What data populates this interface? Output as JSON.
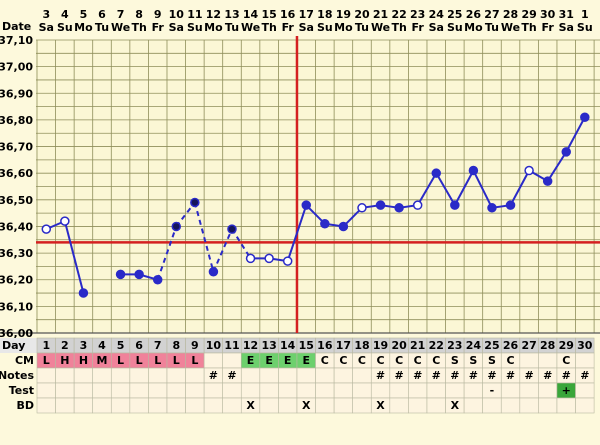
{
  "header": {
    "date_label": "Date",
    "dates": [
      "3",
      "4",
      "5",
      "6",
      "7",
      "8",
      "9",
      "10",
      "11",
      "12",
      "13",
      "14",
      "15",
      "16",
      "17",
      "18",
      "19",
      "20",
      "21",
      "22",
      "23",
      "24",
      "25",
      "26",
      "27",
      "28",
      "29",
      "30",
      "31",
      "1"
    ],
    "weekdays": [
      "Sa",
      "Su",
      "Mo",
      "Tu",
      "We",
      "Th",
      "Fr",
      "Sa",
      "Su",
      "Mo",
      "Tu",
      "We",
      "Th",
      "Fr",
      "Sa",
      "Su",
      "Mo",
      "Tu",
      "We",
      "Th",
      "Fr",
      "Sa",
      "Su",
      "Mo",
      "Tu",
      "We",
      "Th",
      "Fr",
      "Sa",
      "Su"
    ]
  },
  "chart_data": {
    "type": "line",
    "ylim": [
      36.0,
      37.1
    ],
    "yticks": [
      "37,10",
      "37,00",
      "36,90",
      "36,80",
      "36,70",
      "36,60",
      "36,50",
      "36,40",
      "36,30",
      "36,20",
      "36,10",
      "36,00"
    ],
    "x": [
      1,
      2,
      3,
      4,
      5,
      6,
      7,
      8,
      9,
      10,
      11,
      12,
      13,
      14,
      15,
      16,
      17,
      18,
      19,
      20,
      21,
      22,
      23,
      24,
      25,
      26,
      27,
      28,
      29,
      30
    ],
    "temps": [
      36.39,
      36.42,
      36.15,
      null,
      36.22,
      36.22,
      36.2,
      36.4,
      36.49,
      36.23,
      36.39,
      36.28,
      36.28,
      36.27,
      36.48,
      36.41,
      36.4,
      36.47,
      36.48,
      36.47,
      36.48,
      36.6,
      36.48,
      36.61,
      36.47,
      36.48,
      36.61,
      36.57,
      36.68,
      36.81
    ],
    "open_markers": [
      1,
      2,
      12,
      13,
      14,
      18,
      21,
      27
    ],
    "solid_line_segments": [
      [
        1,
        3
      ],
      [
        5,
        7
      ],
      [
        14,
        30
      ]
    ],
    "dashed_line_segments": [
      [
        7,
        10
      ],
      [
        10,
        14
      ]
    ],
    "unconnected_points": [
      8,
      9,
      11
    ],
    "coverline": 36.34,
    "ovulation_day": 14,
    "colors": {
      "line": "#2a2ac8",
      "coverline": "#d42020",
      "grid": "#8e8e5a",
      "plot_bg": "#fbf7d5"
    }
  },
  "rows": {
    "day": {
      "label": "Day",
      "values": [
        "1",
        "2",
        "3",
        "4",
        "5",
        "6",
        "7",
        "8",
        "9",
        "10",
        "11",
        "12",
        "13",
        "14",
        "15",
        "16",
        "17",
        "18",
        "19",
        "20",
        "21",
        "22",
        "23",
        "24",
        "25",
        "26",
        "27",
        "28",
        "29",
        "30"
      ]
    },
    "cm": {
      "label": "CM",
      "values": [
        "L",
        "H",
        "H",
        "M",
        "L",
        "L",
        "L",
        "L",
        "L",
        "",
        "",
        "E",
        "E",
        "E",
        "E",
        "C",
        "C",
        "C",
        "C",
        "C",
        "C",
        "C",
        "S",
        "S",
        "S",
        "C",
        "",
        "",
        "C",
        ""
      ],
      "highlight_colors": {
        "menstrual": "#f0829a",
        "fertile": "#6dd06d"
      }
    },
    "notes": {
      "label": "Notes",
      "values": [
        "",
        "",
        "",
        "",
        "",
        "",
        "",
        "",
        "",
        "#",
        "#",
        "",
        "",
        "",
        "",
        "",
        "",
        "",
        "#",
        "#",
        "#",
        "#",
        "#",
        "#",
        "#",
        "#",
        "#",
        "#",
        "#",
        "#"
      ]
    },
    "test": {
      "label": "Test",
      "values": [
        "",
        "",
        "",
        "",
        "",
        "",
        "",
        "",
        "",
        "",
        "",
        "",
        "",
        "",
        "",
        "",
        "",
        "",
        "",
        "",
        "",
        "",
        "",
        "",
        "-",
        "",
        "",
        "",
        "+",
        ""
      ]
    },
    "bd": {
      "label": "BD",
      "values": [
        "",
        "",
        "",
        "",
        "",
        "",
        "",
        "",
        "",
        "",
        "",
        "X",
        "",
        "",
        "X",
        "",
        "",
        "",
        "X",
        "",
        "",
        "",
        "X",
        "",
        "",
        "",
        "",
        "",
        "",
        ""
      ]
    }
  }
}
